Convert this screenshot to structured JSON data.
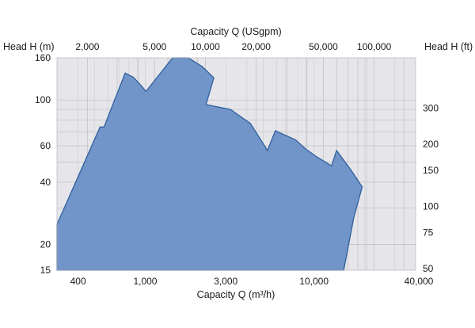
{
  "colors": {
    "plot_background": "#e6e6ea",
    "grid_major": "#c4c4c8",
    "grid_minor": "#d3d3d7",
    "area_fill": "#7195c8",
    "area_stroke": "#2f5f9e",
    "text": "#1a1a1a"
  },
  "chart_data": {
    "type": "area",
    "x_scale": "log",
    "y_scale": "log",
    "xlim": [
      300,
      40000
    ],
    "ylim": [
      15,
      160
    ],
    "grid": true,
    "axes": {
      "bottom": {
        "label": "Capacity Q (m³/h)",
        "ticks": [
          400,
          1000,
          3000,
          10000,
          40000
        ],
        "tick_labels": [
          "400",
          "1,000",
          "3,000",
          "10,000",
          "40,000"
        ]
      },
      "top": {
        "label": "Capacity Q (USgpm)",
        "ticks": [
          2000,
          5000,
          10000,
          20000,
          50000,
          100000
        ],
        "tick_labels": [
          "2,000",
          "5,000",
          "10,000",
          "20,000",
          "50,000",
          "100,000"
        ]
      },
      "left": {
        "label": "Head H (m)",
        "ticks": [
          15,
          20,
          40,
          60,
          100,
          160
        ],
        "tick_labels": [
          "15",
          "20",
          "40",
          "60",
          "100",
          "160"
        ]
      },
      "right": {
        "label": "Head H (ft)",
        "ticks": [
          50,
          75,
          100,
          150,
          200,
          300
        ],
        "tick_labels": [
          "50",
          "75",
          "100",
          "150",
          "200",
          "300"
        ]
      }
    },
    "envelope": [
      {
        "x": 300,
        "y": 25
      },
      {
        "x": 540,
        "y": 74
      },
      {
        "x": 570,
        "y": 74
      },
      {
        "x": 760,
        "y": 135
      },
      {
        "x": 850,
        "y": 129
      },
      {
        "x": 950,
        "y": 117
      },
      {
        "x": 1010,
        "y": 110
      },
      {
        "x": 1450,
        "y": 160
      },
      {
        "x": 1800,
        "y": 160
      },
      {
        "x": 2180,
        "y": 145
      },
      {
        "x": 2550,
        "y": 128
      },
      {
        "x": 2290,
        "y": 95
      },
      {
        "x": 3200,
        "y": 90
      },
      {
        "x": 4200,
        "y": 77
      },
      {
        "x": 5300,
        "y": 57
      },
      {
        "x": 5900,
        "y": 71
      },
      {
        "x": 7800,
        "y": 64
      },
      {
        "x": 8900,
        "y": 58
      },
      {
        "x": 10400,
        "y": 53
      },
      {
        "x": 12700,
        "y": 48
      },
      {
        "x": 13600,
        "y": 57
      },
      {
        "x": 16500,
        "y": 46
      },
      {
        "x": 19300,
        "y": 38
      },
      {
        "x": 17200,
        "y": 27
      },
      {
        "x": 15000,
        "y": 15
      },
      {
        "x": 300,
        "y": 15
      }
    ]
  }
}
